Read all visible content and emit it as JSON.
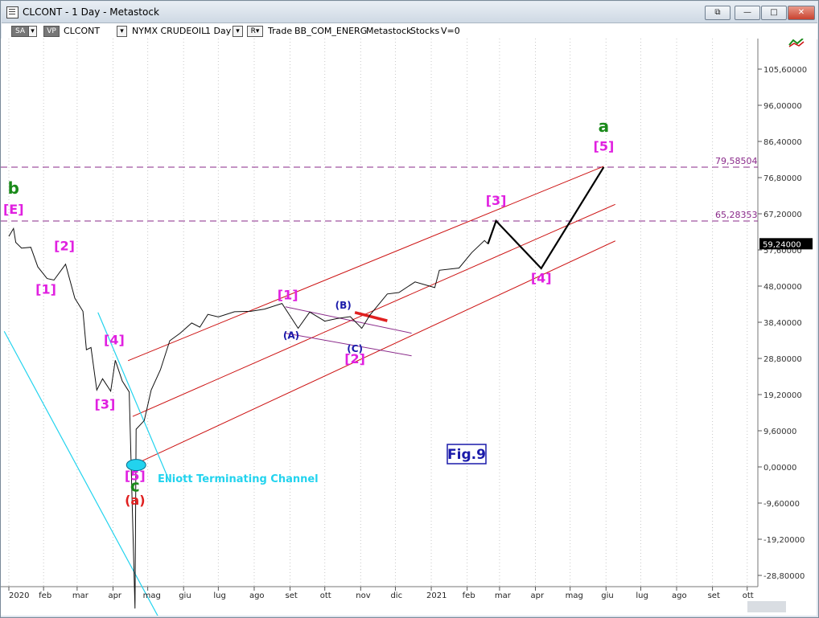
{
  "window": {
    "title": "CLCONT - 1 Day - Metastock",
    "controls": [
      "restore-all",
      "minimize",
      "maximize",
      "close"
    ]
  },
  "toolbar": {
    "sa_label": "SA",
    "vp_label": "VP",
    "symbol": "CLCONT",
    "instrument": "NYMX CRUDEOIL",
    "interval": "1 Day",
    "mode": "Trade",
    "template": "BB_COM_ENERG",
    "metastock_label": "Metastock",
    "stocks_label": "Stocks",
    "v_label": "V=0"
  },
  "chart_data": {
    "type": "line",
    "instrument": "CLCONT",
    "x_labels": [
      "2020",
      "feb",
      "mar",
      "apr",
      "mag",
      "giu",
      "lug",
      "ago",
      "set",
      "ott",
      "nov",
      "dic",
      "2021",
      "feb",
      "mar",
      "apr",
      "mag",
      "giu",
      "lug",
      "ago",
      "set",
      "ott"
    ],
    "y_ticks": [
      "105,60000",
      "96,00000",
      "86,40000",
      "76,80000",
      "67,20000",
      "57,60000",
      "48,00000",
      "38,40000",
      "28,80000",
      "19,20000",
      "9,60000",
      "0,00000",
      "-9,60000",
      "-19,20000",
      "-28,80000"
    ],
    "ylim": [
      -28.8,
      105.6
    ],
    "last_price": "59,24000",
    "horizontal_levels": [
      "79,58504",
      "65,28353"
    ],
    "price_series": [
      [
        "2020-01-02",
        61.2
      ],
      [
        "2020-01-06",
        63.3
      ],
      [
        "2020-01-08",
        59.6
      ],
      [
        "2020-01-13",
        58.1
      ],
      [
        "2020-01-21",
        58.3
      ],
      [
        "2020-01-27",
        53.1
      ],
      [
        "2020-02-04",
        50.0
      ],
      [
        "2020-02-10",
        49.6
      ],
      [
        "2020-02-20",
        53.8
      ],
      [
        "2020-02-28",
        44.8
      ],
      [
        "2020-03-06",
        41.3
      ],
      [
        "2020-03-09",
        31.1
      ],
      [
        "2020-03-13",
        31.7
      ],
      [
        "2020-03-18",
        20.4
      ],
      [
        "2020-03-23",
        23.4
      ],
      [
        "2020-03-30",
        20.1
      ],
      [
        "2020-04-03",
        28.3
      ],
      [
        "2020-04-09",
        22.8
      ],
      [
        "2020-04-15",
        19.9
      ],
      [
        "2020-04-20",
        -37.6
      ],
      [
        "2020-04-21",
        10.0
      ],
      [
        "2020-04-28",
        12.3
      ],
      [
        "2020-05-04",
        20.4
      ],
      [
        "2020-05-12",
        25.8
      ],
      [
        "2020-05-20",
        33.5
      ],
      [
        "2020-05-29",
        35.5
      ],
      [
        "2020-06-08",
        38.2
      ],
      [
        "2020-06-15",
        37.1
      ],
      [
        "2020-06-22",
        40.5
      ],
      [
        "2020-07-01",
        39.8
      ],
      [
        "2020-07-15",
        41.2
      ],
      [
        "2020-07-29",
        41.3
      ],
      [
        "2020-08-10",
        41.9
      ],
      [
        "2020-08-25",
        43.4
      ],
      [
        "2020-09-08",
        36.8
      ],
      [
        "2020-09-18",
        41.1
      ],
      [
        "2020-10-01",
        38.7
      ],
      [
        "2020-10-12",
        39.4
      ],
      [
        "2020-10-23",
        39.9
      ],
      [
        "2020-11-02",
        36.8
      ],
      [
        "2020-11-09",
        40.3
      ],
      [
        "2020-11-24",
        45.9
      ],
      [
        "2020-12-04",
        46.3
      ],
      [
        "2020-12-18",
        49.1
      ],
      [
        "2021-01-04",
        47.6
      ],
      [
        "2021-01-08",
        52.2
      ],
      [
        "2021-01-25",
        52.8
      ],
      [
        "2021-02-05",
        56.9
      ],
      [
        "2021-02-16",
        60.1
      ],
      [
        "2021-02-19",
        59.2
      ]
    ],
    "projection_path": [
      [
        "2021-02-19",
        59.2
      ],
      [
        "2021-02-26",
        65.3
      ],
      [
        "2021-04-06",
        52.7
      ],
      [
        "2021-05-30",
        79.6
      ]
    ],
    "elliott_labels": [
      {
        "text": "b",
        "color": "#1a8a1a",
        "date": "2020-01-06",
        "price": 72.5
      },
      {
        "text": "[E]",
        "color": "#e020e0",
        "date": "2020-01-06",
        "price": 67.2
      },
      {
        "text": "[1]",
        "color": "#e020e0",
        "date": "2020-02-03",
        "price": 46.0
      },
      {
        "text": "[2]",
        "color": "#e020e0",
        "date": "2020-02-19",
        "price": 57.5
      },
      {
        "text": "[3]",
        "color": "#e020e0",
        "date": "2020-03-25",
        "price": 15.5
      },
      {
        "text": "[4]",
        "color": "#e020e0",
        "date": "2020-04-02",
        "price": 32.5
      },
      {
        "text": "[5]",
        "color": "#e020e0",
        "date": "2020-04-20",
        "price": -3.5
      },
      {
        "text": "c",
        "color": "#1a8a1a",
        "date": "2020-04-20",
        "price": -6.5
      },
      {
        "text": "(a)",
        "color": "#e02020",
        "date": "2020-04-20",
        "price": -10.0
      },
      {
        "text": "[1]",
        "color": "#e020e0",
        "date": "2020-08-30",
        "price": 44.5
      },
      {
        "text": "(A)",
        "color": "#1a1aaa",
        "date": "2020-09-02",
        "price": 34.0
      },
      {
        "text": "(B)",
        "color": "#1a1aaa",
        "date": "2020-10-17",
        "price": 42.0
      },
      {
        "text": "(C)",
        "color": "#1a1aaa",
        "date": "2020-10-27",
        "price": 30.5
      },
      {
        "text": "[2]",
        "color": "#e020e0",
        "date": "2020-10-27",
        "price": 27.5
      },
      {
        "text": "[3]",
        "color": "#e020e0",
        "date": "2021-02-26",
        "price": 69.5
      },
      {
        "text": "[4]",
        "color": "#e020e0",
        "date": "2021-04-06",
        "price": 49.0
      },
      {
        "text": "[5]",
        "color": "#e020e0",
        "date": "2021-05-30",
        "price": 84.0
      },
      {
        "text": "a",
        "color": "#1a8a1a",
        "date": "2021-05-30",
        "price": 89.0
      }
    ],
    "annotations": [
      {
        "text": "Elliott Terminating Channel",
        "color": "#22d3ee"
      },
      {
        "text": "Fig.9",
        "color": "#1a1aaa"
      }
    ],
    "grid": "vertical dotted"
  },
  "colors": {
    "chart_bg": "#ffffff",
    "magenta": "#e020e0",
    "green": "#1a8a1a",
    "red": "#e02020",
    "blue": "#1a1aaa",
    "cyan": "#22d3ee",
    "channel": "#cc1111",
    "level_line": "#8a2a8a",
    "price_line": "#111111"
  }
}
